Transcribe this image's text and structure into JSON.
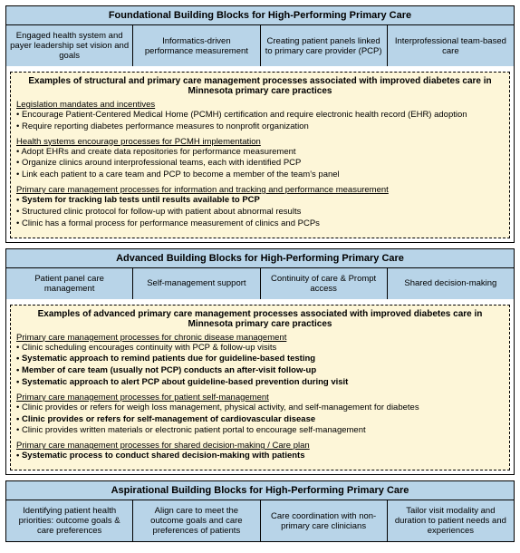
{
  "colors": {
    "header_bg": "#b8d4e8",
    "examples_bg": "#fdf6d8",
    "border": "#000000"
  },
  "sections": [
    {
      "title": "Foundational Building Blocks for High-Performing Primary Care",
      "blocks": [
        "Engaged health system and payer leadership set vision and goals",
        "Informatics-driven performance measurement",
        "Creating patient panels linked to primary care provider (PCP)",
        "Interprofessional team-based care"
      ],
      "examples": {
        "title": "Examples of structural and primary care management processes associated with improved diabetes care in Minnesota primary care practices",
        "groups": [
          {
            "heading": "Legislation mandates and incentives",
            "items": [
              {
                "text": "Encourage Patient-Centered Medical Home (PCMH) certification and require electronic health record (EHR) adoption",
                "bold": false
              },
              {
                "text": "Require reporting diabetes performance measures to nonprofit organization",
                "bold": false
              }
            ]
          },
          {
            "heading": "Health systems encourage processes for PCMH implementation",
            "items": [
              {
                "text": "Adopt EHRs and create data repositories for performance measurement",
                "bold": false
              },
              {
                "text": "Organize clinics around interprofessional teams, each with identified PCP",
                "bold": false
              },
              {
                "text": "Link each patient to a care team and PCP to become a member of the team's panel",
                "bold": false
              }
            ]
          },
          {
            "heading": "Primary care management processes for information and tracking and performance measurement",
            "items": [
              {
                "text": "System for tracking lab tests until results available to PCP",
                "bold": true
              },
              {
                "text": "Structured clinic protocol for follow-up with patient about abnormal results",
                "bold": false
              },
              {
                "text": "Clinic has a formal process for performance measurement of clinics and PCPs",
                "bold": false
              }
            ]
          }
        ]
      }
    },
    {
      "title": "Advanced Building Blocks for High-Performing Primary Care",
      "blocks": [
        "Patient panel care management",
        "Self-management support",
        "Continuity of care & Prompt access",
        "Shared decision-making"
      ],
      "examples": {
        "title": "Examples of advanced primary care management processes associated with improved diabetes care in Minnesota primary care practices",
        "groups": [
          {
            "heading": "Primary care management processes for chronic disease management",
            "items": [
              {
                "text": "Clinic scheduling encourages continuity with PCP & follow-up visits",
                "bold": false
              },
              {
                "text": "Systematic approach to remind patients due for guideline-based testing",
                "bold": true
              },
              {
                "text": "Member of care team (usually not PCP) conducts an after-visit follow-up",
                "bold": true
              },
              {
                "text": "Systematic approach to alert PCP about guideline-based prevention during visit",
                "bold": true
              }
            ]
          },
          {
            "heading": "Primary care management processes for patient self-management",
            "items": [
              {
                "text": "Clinic provides or refers for weigh loss management, physical activity, and self-management for diabetes",
                "bold": false
              },
              {
                "text": "Clinic provides or refers for self-management of cardiovascular disease",
                "bold": true
              },
              {
                "text": "Clinic provides written materials or electronic patient portal to encourage self-management",
                "bold": false
              }
            ]
          },
          {
            "heading": "Primary care management processes for shared decision-making / Care plan",
            "items": [
              {
                "text": "Systematic process to conduct shared decision-making with patients",
                "bold": true
              }
            ]
          }
        ]
      }
    },
    {
      "title": "Aspirational Building Blocks for High-Performing Primary Care",
      "blocks": [
        "Identifying patient health priorities: outcome goals & care preferences",
        "Align care to meet the outcome goals and care preferences of patients",
        "Care coordination with non-primary care clinicians",
        "Tailor visit modality and duration to patient needs and experiences"
      ],
      "examples": null
    }
  ]
}
